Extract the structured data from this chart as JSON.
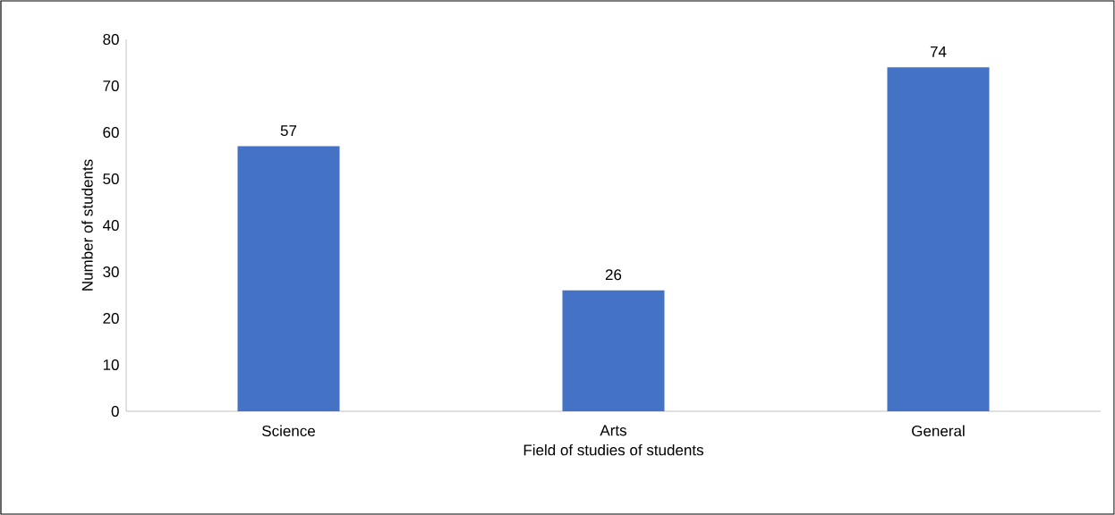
{
  "chart_data": {
    "type": "bar",
    "xlabel": "Field of studies of students",
    "ylabel": "Number of students",
    "categories": [
      "Science",
      "Arts",
      "General"
    ],
    "values": [
      57,
      26,
      74
    ],
    "color": "#4472c4",
    "ylim": [
      0,
      80
    ],
    "yticks": [
      0,
      10,
      20,
      30,
      40,
      50,
      60,
      70,
      80
    ],
    "grid": false,
    "data_labels": true
  }
}
